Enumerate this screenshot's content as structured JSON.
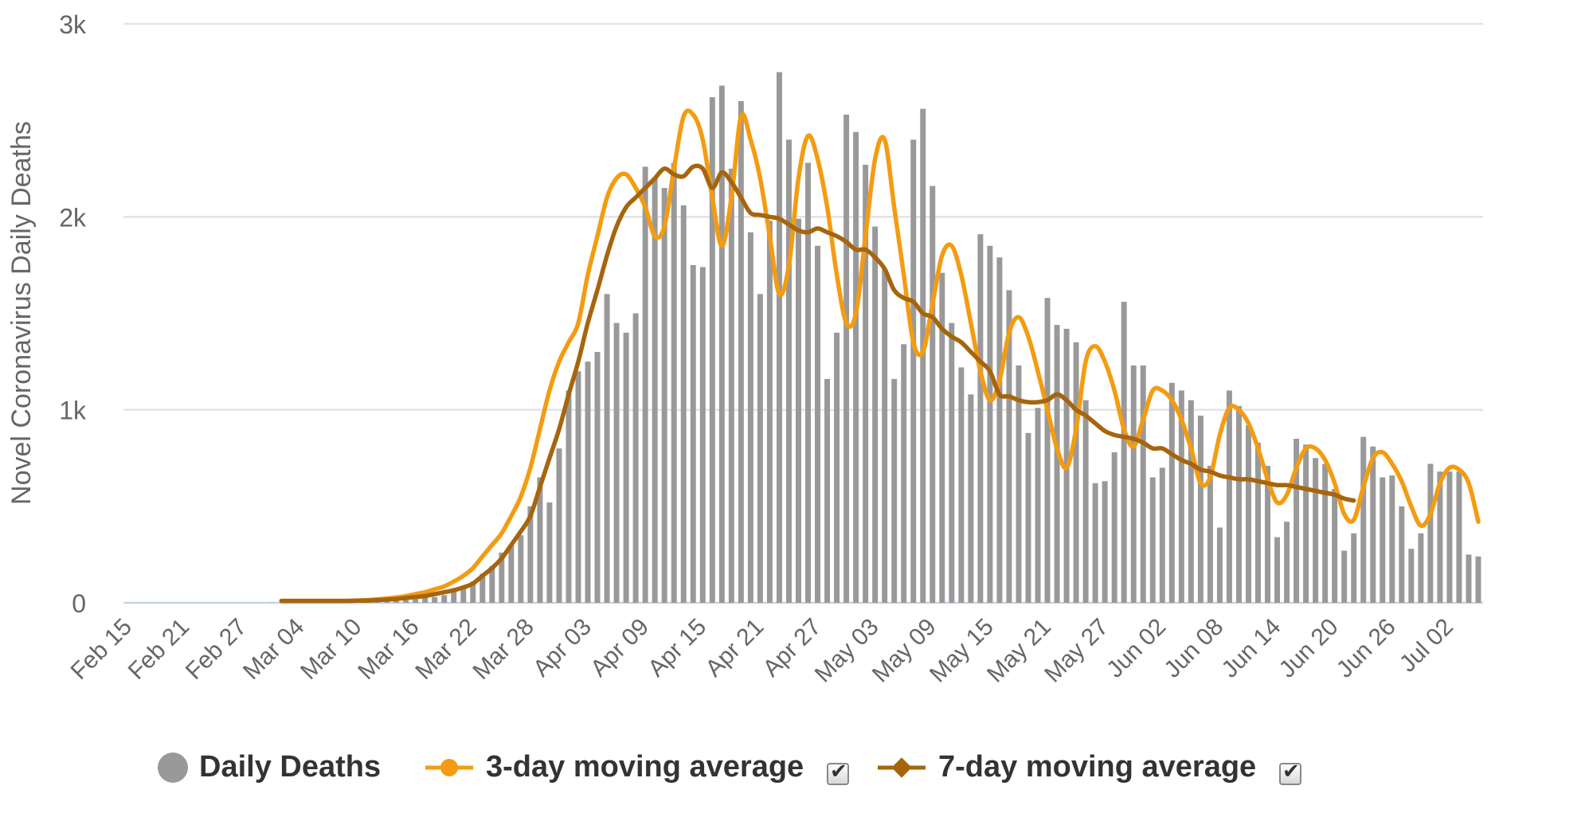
{
  "chart_data": {
    "type": "bar",
    "ylabel": "Novel Coronavirus Daily Deaths",
    "ylim": [
      0,
      3000
    ],
    "yticks": [
      {
        "value": 0,
        "label": "0"
      },
      {
        "value": 1000,
        "label": "1k"
      },
      {
        "value": 2000,
        "label": "2k"
      },
      {
        "value": 3000,
        "label": "3k"
      }
    ],
    "xticks": [
      "Feb 15",
      "Feb 21",
      "Feb 27",
      "Mar 04",
      "Mar 10",
      "Mar 16",
      "Mar 22",
      "Mar 28",
      "Apr 03",
      "Apr 09",
      "Apr 15",
      "Apr 21",
      "Apr 27",
      "May 03",
      "May 09",
      "May 15",
      "May 21",
      "May 27",
      "Jun 02",
      "Jun 08",
      "Jun 14",
      "Jun 20",
      "Jun 26",
      "Jul 02"
    ],
    "x_start": "2020-02-15",
    "grid": true,
    "legend_position": "bottom",
    "series": [
      {
        "name": "Daily Deaths",
        "type": "bar",
        "color": "#999999",
        "values": [
          0,
          0,
          0,
          0,
          0,
          0,
          0,
          0,
          0,
          0,
          0,
          0,
          0,
          0,
          0,
          1,
          0,
          1,
          2,
          2,
          2,
          2,
          3,
          3,
          5,
          6,
          8,
          9,
          10,
          15,
          20,
          25,
          30,
          40,
          60,
          80,
          110,
          150,
          190,
          260,
          300,
          350,
          500,
          650,
          520,
          800,
          1100,
          1200,
          1250,
          1300,
          1600,
          1450,
          1400,
          1500,
          2260,
          2200,
          2150,
          2280,
          2060,
          1750,
          1740,
          2620,
          2680,
          2250,
          2600,
          1920,
          1600,
          1980,
          2750,
          2400,
          1990,
          2280,
          1850,
          1160,
          1400,
          2530,
          2440,
          2270,
          1950,
          1730,
          1160,
          1340,
          2400,
          2560,
          2160,
          1710,
          1450,
          1220,
          1080,
          1910,
          1850,
          1790,
          1620,
          1230,
          880,
          1010,
          1580,
          1440,
          1420,
          1350,
          1050,
          620,
          630,
          780,
          1560,
          1230,
          1230,
          650,
          700,
          1140,
          1100,
          1050,
          970,
          710,
          390,
          1100,
          1020,
          920,
          830,
          710,
          340,
          420,
          850,
          820,
          750,
          720,
          590,
          270,
          360,
          860,
          810,
          650,
          660,
          500,
          280,
          360,
          720,
          680,
          680,
          680,
          250,
          240
        ]
      },
      {
        "name": "3-day moving average",
        "type": "line",
        "color": "#F39C12",
        "start_index": 16,
        "values": [
          10,
          10,
          10,
          10,
          10,
          10,
          10,
          10,
          12,
          14,
          18,
          22,
          28,
          35,
          45,
          55,
          70,
          85,
          110,
          140,
          180,
          240,
          300,
          360,
          450,
          550,
          700,
          900,
          1100,
          1250,
          1350,
          1450,
          1700,
          1900,
          2100,
          2200,
          2220,
          2150,
          2050,
          1900,
          1950,
          2250,
          2520,
          2530,
          2400,
          2100,
          1850,
          2100,
          2520,
          2400,
          2200,
          1900,
          1600,
          1750,
          2200,
          2420,
          2300,
          2050,
          1700,
          1450,
          1500,
          1900,
          2300,
          2400,
          2050,
          1700,
          1350,
          1300,
          1550,
          1800,
          1850,
          1700,
          1450,
          1200,
          1050,
          1150,
          1400,
          1480,
          1380,
          1200,
          1000,
          800,
          700,
          900,
          1250,
          1330,
          1250,
          1100,
          900,
          810,
          950,
          1100,
          1100,
          1050,
          950,
          800,
          620,
          650,
          870,
          1010,
          1000,
          930,
          800,
          640,
          520,
          560,
          700,
          800,
          800,
          740,
          620,
          460,
          430,
          600,
          750,
          780,
          720,
          630,
          500,
          400,
          460,
          620,
          700,
          690,
          620,
          420
        ]
      },
      {
        "name": "7-day moving average",
        "type": "line",
        "color": "#A6650D",
        "start_index": 16,
        "values": [
          10,
          10,
          10,
          10,
          10,
          10,
          10,
          10,
          11,
          12,
          14,
          17,
          20,
          25,
          30,
          35,
          45,
          55,
          65,
          80,
          100,
          140,
          180,
          230,
          300,
          370,
          450,
          600,
          750,
          900,
          1080,
          1250,
          1450,
          1620,
          1800,
          1950,
          2050,
          2100,
          2150,
          2200,
          2250,
          2220,
          2210,
          2260,
          2250,
          2150,
          2230,
          2180,
          2100,
          2020,
          2010,
          2000,
          1990,
          1960,
          1930,
          1920,
          1940,
          1920,
          1900,
          1870,
          1830,
          1830,
          1790,
          1730,
          1620,
          1580,
          1560,
          1500,
          1480,
          1420,
          1380,
          1350,
          1300,
          1250,
          1200,
          1080,
          1070,
          1050,
          1040,
          1040,
          1050,
          1080,
          1050,
          1000,
          970,
          930,
          890,
          870,
          860,
          850,
          830,
          800,
          800,
          770,
          740,
          720,
          690,
          680,
          660,
          650,
          640,
          640,
          630,
          620,
          610,
          610,
          600,
          590,
          580,
          570,
          560,
          540,
          530
        ]
      }
    ]
  },
  "legend": {
    "items": [
      {
        "label": "Daily Deaths"
      },
      {
        "label": "3-day moving average",
        "checked": "✔"
      },
      {
        "label": "7-day moving average",
        "checked": "✔"
      }
    ]
  }
}
